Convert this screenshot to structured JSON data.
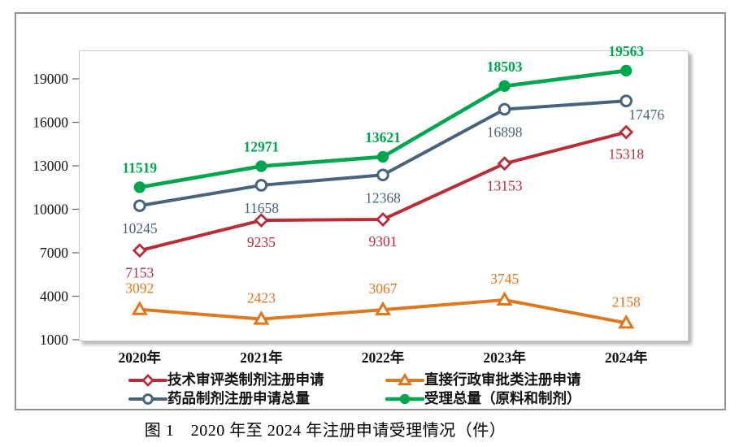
{
  "figure": {
    "caption": "图 1　2020 年至 2024 年注册申请受理情况（件）"
  },
  "chart_data": {
    "type": "line",
    "title": "",
    "xlabel": "",
    "ylabel": "",
    "grid": false,
    "categories": [
      "2020年",
      "2021年",
      "2022年",
      "2023年",
      "2024年"
    ],
    "series": [
      {
        "name": "技术审评类制剂注册申请",
        "values": [
          7153,
          9235,
          9301,
          13153,
          15318
        ],
        "color": "#B92C38",
        "marker": "diamond-open",
        "label_dy": 27
      },
      {
        "name": "直接行政审批类注册申请",
        "values": [
          3092,
          2423,
          3067,
          3745,
          2158
        ],
        "color": "#DF771E",
        "marker": "triangle-open",
        "label_dy": -26
      },
      {
        "name": "药品制剂注册申请总量",
        "values": [
          10245,
          11658,
          12368,
          16898,
          17476
        ],
        "color": "#48647D",
        "marker": "circle-open",
        "label_dy": 28,
        "label_overrides": {
          "4": {
            "dx": 25,
            "dy": 17
          }
        }
      },
      {
        "name": "受理总量（原料和制剂）",
        "values": [
          11519,
          12971,
          13621,
          18503,
          19563
        ],
        "color": "#00A64F",
        "marker": "circle-filled",
        "label_dy": -24,
        "label_bold": true
      }
    ],
    "yaxis": {
      "min": 1000,
      "max": 19000,
      "tick_step": 3000,
      "ticks": [
        1000,
        4000,
        7000,
        10000,
        13000,
        16000,
        19000
      ]
    },
    "legend": {
      "position": "bottom",
      "columns": 2,
      "order": [
        "技术审评类制剂注册申请",
        "直接行政审批类注册申请",
        "药品制剂注册申请总量",
        "受理总量（原料和制剂）"
      ]
    }
  }
}
